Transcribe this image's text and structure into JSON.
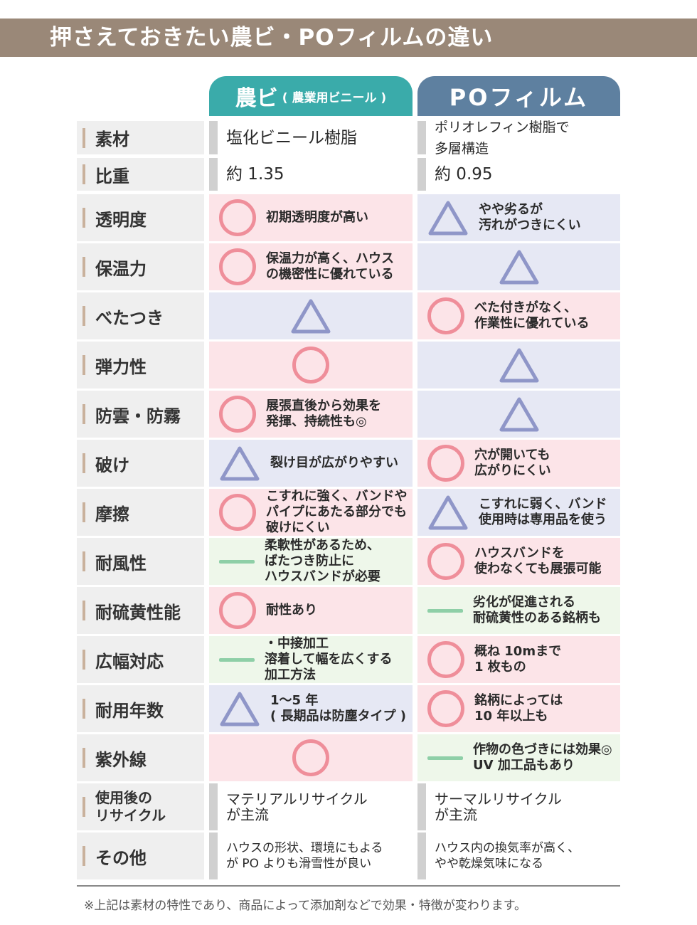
{
  "title": "押さえておきたい農ビ・POフィルムの違い",
  "headers": {
    "nobi": "農ビ",
    "nobi_sub": "( 農業用ビニール )",
    "po": "POフィルム"
  },
  "colors": {
    "title_bar": "#9a8878",
    "nobi": "#3aabaa",
    "po": "#5e80a0",
    "circle": "#ef8e9a",
    "triangle": "#8f96c8",
    "dash": "#8ecfa7"
  },
  "rows": [
    {
      "label": "素材",
      "nobi": {
        "mark": "none",
        "text": "塩化ビニール樹脂"
      },
      "po": {
        "mark": "none",
        "text": "ポリオレフィン樹脂で\n多層構造"
      }
    },
    {
      "label": "比重",
      "nobi": {
        "mark": "none",
        "text": "約 1.35"
      },
      "po": {
        "mark": "none",
        "text": "約 0.95"
      }
    },
    {
      "label": "透明度",
      "nobi": {
        "mark": "circle",
        "text": "初期透明度が高い"
      },
      "po": {
        "mark": "triangle",
        "text": "やや劣るが\n汚れがつきにくい"
      }
    },
    {
      "label": "保温力",
      "nobi": {
        "mark": "circle",
        "text": "保温力が高く、ハウス\nの機密性に優れている"
      },
      "po": {
        "mark": "triangle",
        "text": ""
      }
    },
    {
      "label": "べたつき",
      "nobi": {
        "mark": "triangle",
        "text": ""
      },
      "po": {
        "mark": "circle",
        "text": "べた付きがなく、\n作業性に優れている"
      }
    },
    {
      "label": "弾力性",
      "nobi": {
        "mark": "circle",
        "text": ""
      },
      "po": {
        "mark": "triangle",
        "text": ""
      }
    },
    {
      "label": "防雲・防霧",
      "nobi": {
        "mark": "circle",
        "text": "展張直後から効果を\n発揮、持続性も◎"
      },
      "po": {
        "mark": "triangle",
        "text": ""
      }
    },
    {
      "label": "破け",
      "nobi": {
        "mark": "triangle",
        "text": "裂け目が広がりやすい"
      },
      "po": {
        "mark": "circle",
        "text": "穴が開いても\n広がりにくい"
      }
    },
    {
      "label": "摩擦",
      "nobi": {
        "mark": "circle",
        "text": "こすれに強く、バンドや\nパイプにあたる部分でも\n破けにくい"
      },
      "po": {
        "mark": "triangle",
        "text": "こすれに弱く、バンド\n使用時は専用品を使う"
      }
    },
    {
      "label": "耐風性",
      "nobi": {
        "mark": "dash",
        "text": "柔軟性があるため、\nばたつき防止に\nハウスバンドが必要"
      },
      "po": {
        "mark": "circle",
        "text": "ハウスバンドを\n使わなくても展張可能"
      }
    },
    {
      "label": "耐硫黄性能",
      "nobi": {
        "mark": "circle",
        "text": "耐性あり"
      },
      "po": {
        "mark": "dash",
        "text": "劣化が促進される\n耐硫黄性のある銘柄も"
      }
    },
    {
      "label": "広幅対応",
      "nobi": {
        "mark": "dash",
        "text": "・中接加工\n溶着して幅を広くする\n加工方法"
      },
      "po": {
        "mark": "circle",
        "text": "概ね 10mまで\n1 枚もの"
      }
    },
    {
      "label": "耐用年数",
      "nobi": {
        "mark": "triangle",
        "text": "1～5 年\n( 長期品は防塵タイプ )"
      },
      "po": {
        "mark": "circle",
        "text": "銘柄によっては\n10 年以上も"
      }
    },
    {
      "label": "紫外線",
      "nobi": {
        "mark": "circle",
        "text": ""
      },
      "po": {
        "mark": "dash",
        "text": "作物の色づきには効果◎\nUV 加工品もあり"
      }
    },
    {
      "label": "使用後の\nリサイクル",
      "nobi": {
        "mark": "none",
        "text": "マテリアルリサイクル\nが主流"
      },
      "po": {
        "mark": "none",
        "text": "サーマルリサイクル\nが主流"
      }
    },
    {
      "label": "その他",
      "nobi": {
        "mark": "none",
        "text": "ハウスの形状、環境にもよる\nが PO よりも滑雪性が良い"
      },
      "po": {
        "mark": "none",
        "text": "ハウス内の換気率が高く、\nやや乾燥気味になる"
      }
    }
  ],
  "footnote": "※上記は素材の特性であり、商品によって添加剤などで効果・特徴が変わります。"
}
